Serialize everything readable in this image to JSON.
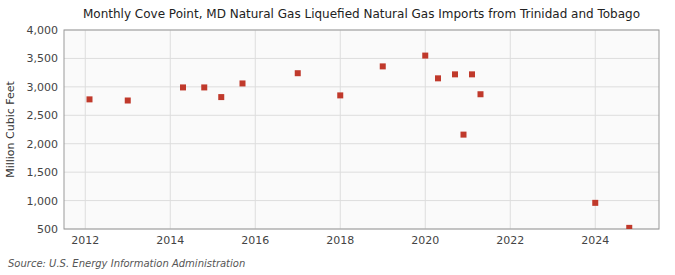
{
  "chart_data": {
    "type": "scatter",
    "title": "Monthly Cove Point, MD Natural Gas Liquefied Natural Gas Imports from Trinidad and Tobago",
    "ylabel": "Million Cubic Feet",
    "source": "Source: U.S. Energy Information Administration",
    "x": [
      2012.1,
      2013.0,
      2014.3,
      2014.8,
      2015.2,
      2015.7,
      2017.0,
      2018.0,
      2019.0,
      2020.0,
      2020.3,
      2020.7,
      2020.9,
      2021.1,
      2021.3,
      2024.0,
      2024.8
    ],
    "values": [
      2780,
      2760,
      2990,
      2990,
      2820,
      3060,
      3240,
      2850,
      3360,
      3550,
      3150,
      3220,
      2160,
      3220,
      2870,
      960,
      520
    ],
    "color": "#c0392b",
    "marker": "square",
    "xlim": [
      2011.5,
      2025.5
    ],
    "ylim": [
      500,
      4000
    ],
    "xticks": [
      2012,
      2014,
      2016,
      2018,
      2020,
      2022,
      2024
    ],
    "yticks": [
      500,
      {
        "value": 1000,
        "label": "1,000"
      },
      {
        "value": 1500,
        "label": "1,500"
      },
      {
        "value": 2000,
        "label": "2,000"
      },
      {
        "value": 2500,
        "label": "2,500"
      },
      {
        "value": 3000,
        "label": "3,000"
      },
      {
        "value": 3500,
        "label": "3,500"
      },
      {
        "value": 4000,
        "label": "4,000"
      }
    ],
    "grid": true
  }
}
